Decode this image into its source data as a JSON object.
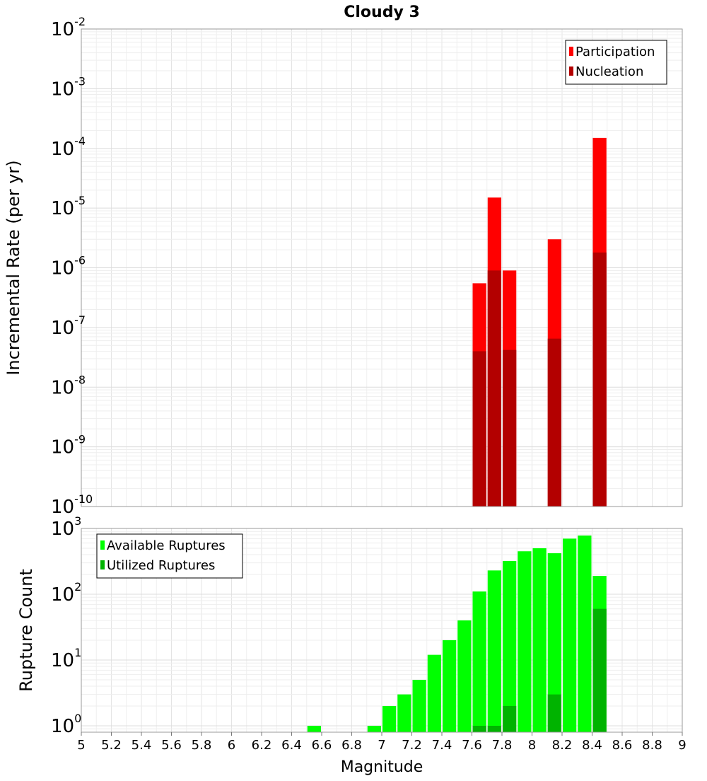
{
  "chart_data": [
    {
      "type": "bar",
      "title": "Cloudy 3",
      "ylabel": "Incremental Rate (per yr)",
      "xlabel": "",
      "xlim": [
        5,
        9
      ],
      "ylim": [
        1e-10,
        0.01
      ],
      "y_scale": "log",
      "legend_position": "top-right",
      "grid": true,
      "yticks": [
        {
          "base": "10",
          "exp": "-2",
          "value": 0.01
        },
        {
          "base": "10",
          "exp": "-3",
          "value": 0.001
        },
        {
          "base": "10",
          "exp": "-4",
          "value": 0.0001
        },
        {
          "base": "10",
          "exp": "-5",
          "value": 1e-05
        },
        {
          "base": "10",
          "exp": "-6",
          "value": 1e-06
        },
        {
          "base": "10",
          "exp": "-7",
          "value": 1e-07
        },
        {
          "base": "10",
          "exp": "-8",
          "value": 1e-08
        },
        {
          "base": "10",
          "exp": "-9",
          "value": 1e-09
        },
        {
          "base": "10",
          "exp": "-10",
          "value": 1e-10
        }
      ],
      "series": [
        {
          "name": "Participation",
          "color": "#ff0000",
          "points": [
            {
              "x": 7.65,
              "y": 5.5e-07
            },
            {
              "x": 7.75,
              "y": 1.5e-05
            },
            {
              "x": 7.85,
              "y": 9e-07
            },
            {
              "x": 8.15,
              "y": 3e-06
            },
            {
              "x": 8.45,
              "y": 0.00015
            }
          ]
        },
        {
          "name": "Nucleation",
          "color": "#b30000",
          "points": [
            {
              "x": 7.65,
              "y": 4e-08
            },
            {
              "x": 7.75,
              "y": 9e-07
            },
            {
              "x": 7.85,
              "y": 4.2e-08
            },
            {
              "x": 8.15,
              "y": 6.5e-08
            },
            {
              "x": 8.45,
              "y": 1.8e-06
            }
          ]
        }
      ]
    },
    {
      "type": "bar",
      "title": "",
      "ylabel": "Rupture Count",
      "xlabel": "Magnitude",
      "xlim": [
        5,
        9
      ],
      "ylim": [
        0.8,
        1000
      ],
      "y_scale": "log",
      "legend_position": "top-left",
      "grid": true,
      "yticks": [
        {
          "base": "10",
          "exp": "3",
          "value": 1000
        },
        {
          "base": "10",
          "exp": "2",
          "value": 100
        },
        {
          "base": "10",
          "exp": "1",
          "value": 10
        },
        {
          "base": "10",
          "exp": "0",
          "value": 1
        }
      ],
      "xticks": [
        "5",
        "5.2",
        "5.4",
        "5.6",
        "5.8",
        "6",
        "6.2",
        "6.4",
        "6.6",
        "6.8",
        "7",
        "7.2",
        "7.4",
        "7.6",
        "7.8",
        "8",
        "8.2",
        "8.4",
        "8.6",
        "8.8",
        "9"
      ],
      "series": [
        {
          "name": "Available Ruptures",
          "color": "#00ff00",
          "points": [
            {
              "x": 6.55,
              "y": 1
            },
            {
              "x": 6.95,
              "y": 1
            },
            {
              "x": 7.05,
              "y": 2
            },
            {
              "x": 7.15,
              "y": 3
            },
            {
              "x": 7.25,
              "y": 5
            },
            {
              "x": 7.35,
              "y": 12
            },
            {
              "x": 7.45,
              "y": 20
            },
            {
              "x": 7.55,
              "y": 40
            },
            {
              "x": 7.65,
              "y": 110
            },
            {
              "x": 7.75,
              "y": 230
            },
            {
              "x": 7.85,
              "y": 320
            },
            {
              "x": 7.95,
              "y": 450
            },
            {
              "x": 8.05,
              "y": 500
            },
            {
              "x": 8.15,
              "y": 420
            },
            {
              "x": 8.25,
              "y": 700
            },
            {
              "x": 8.35,
              "y": 780
            },
            {
              "x": 8.45,
              "y": 190
            }
          ]
        },
        {
          "name": "Utilized Ruptures",
          "color": "#00b300",
          "points": [
            {
              "x": 7.65,
              "y": 1
            },
            {
              "x": 7.75,
              "y": 1
            },
            {
              "x": 7.85,
              "y": 2
            },
            {
              "x": 8.15,
              "y": 3
            },
            {
              "x": 8.45,
              "y": 60
            }
          ]
        }
      ]
    }
  ]
}
